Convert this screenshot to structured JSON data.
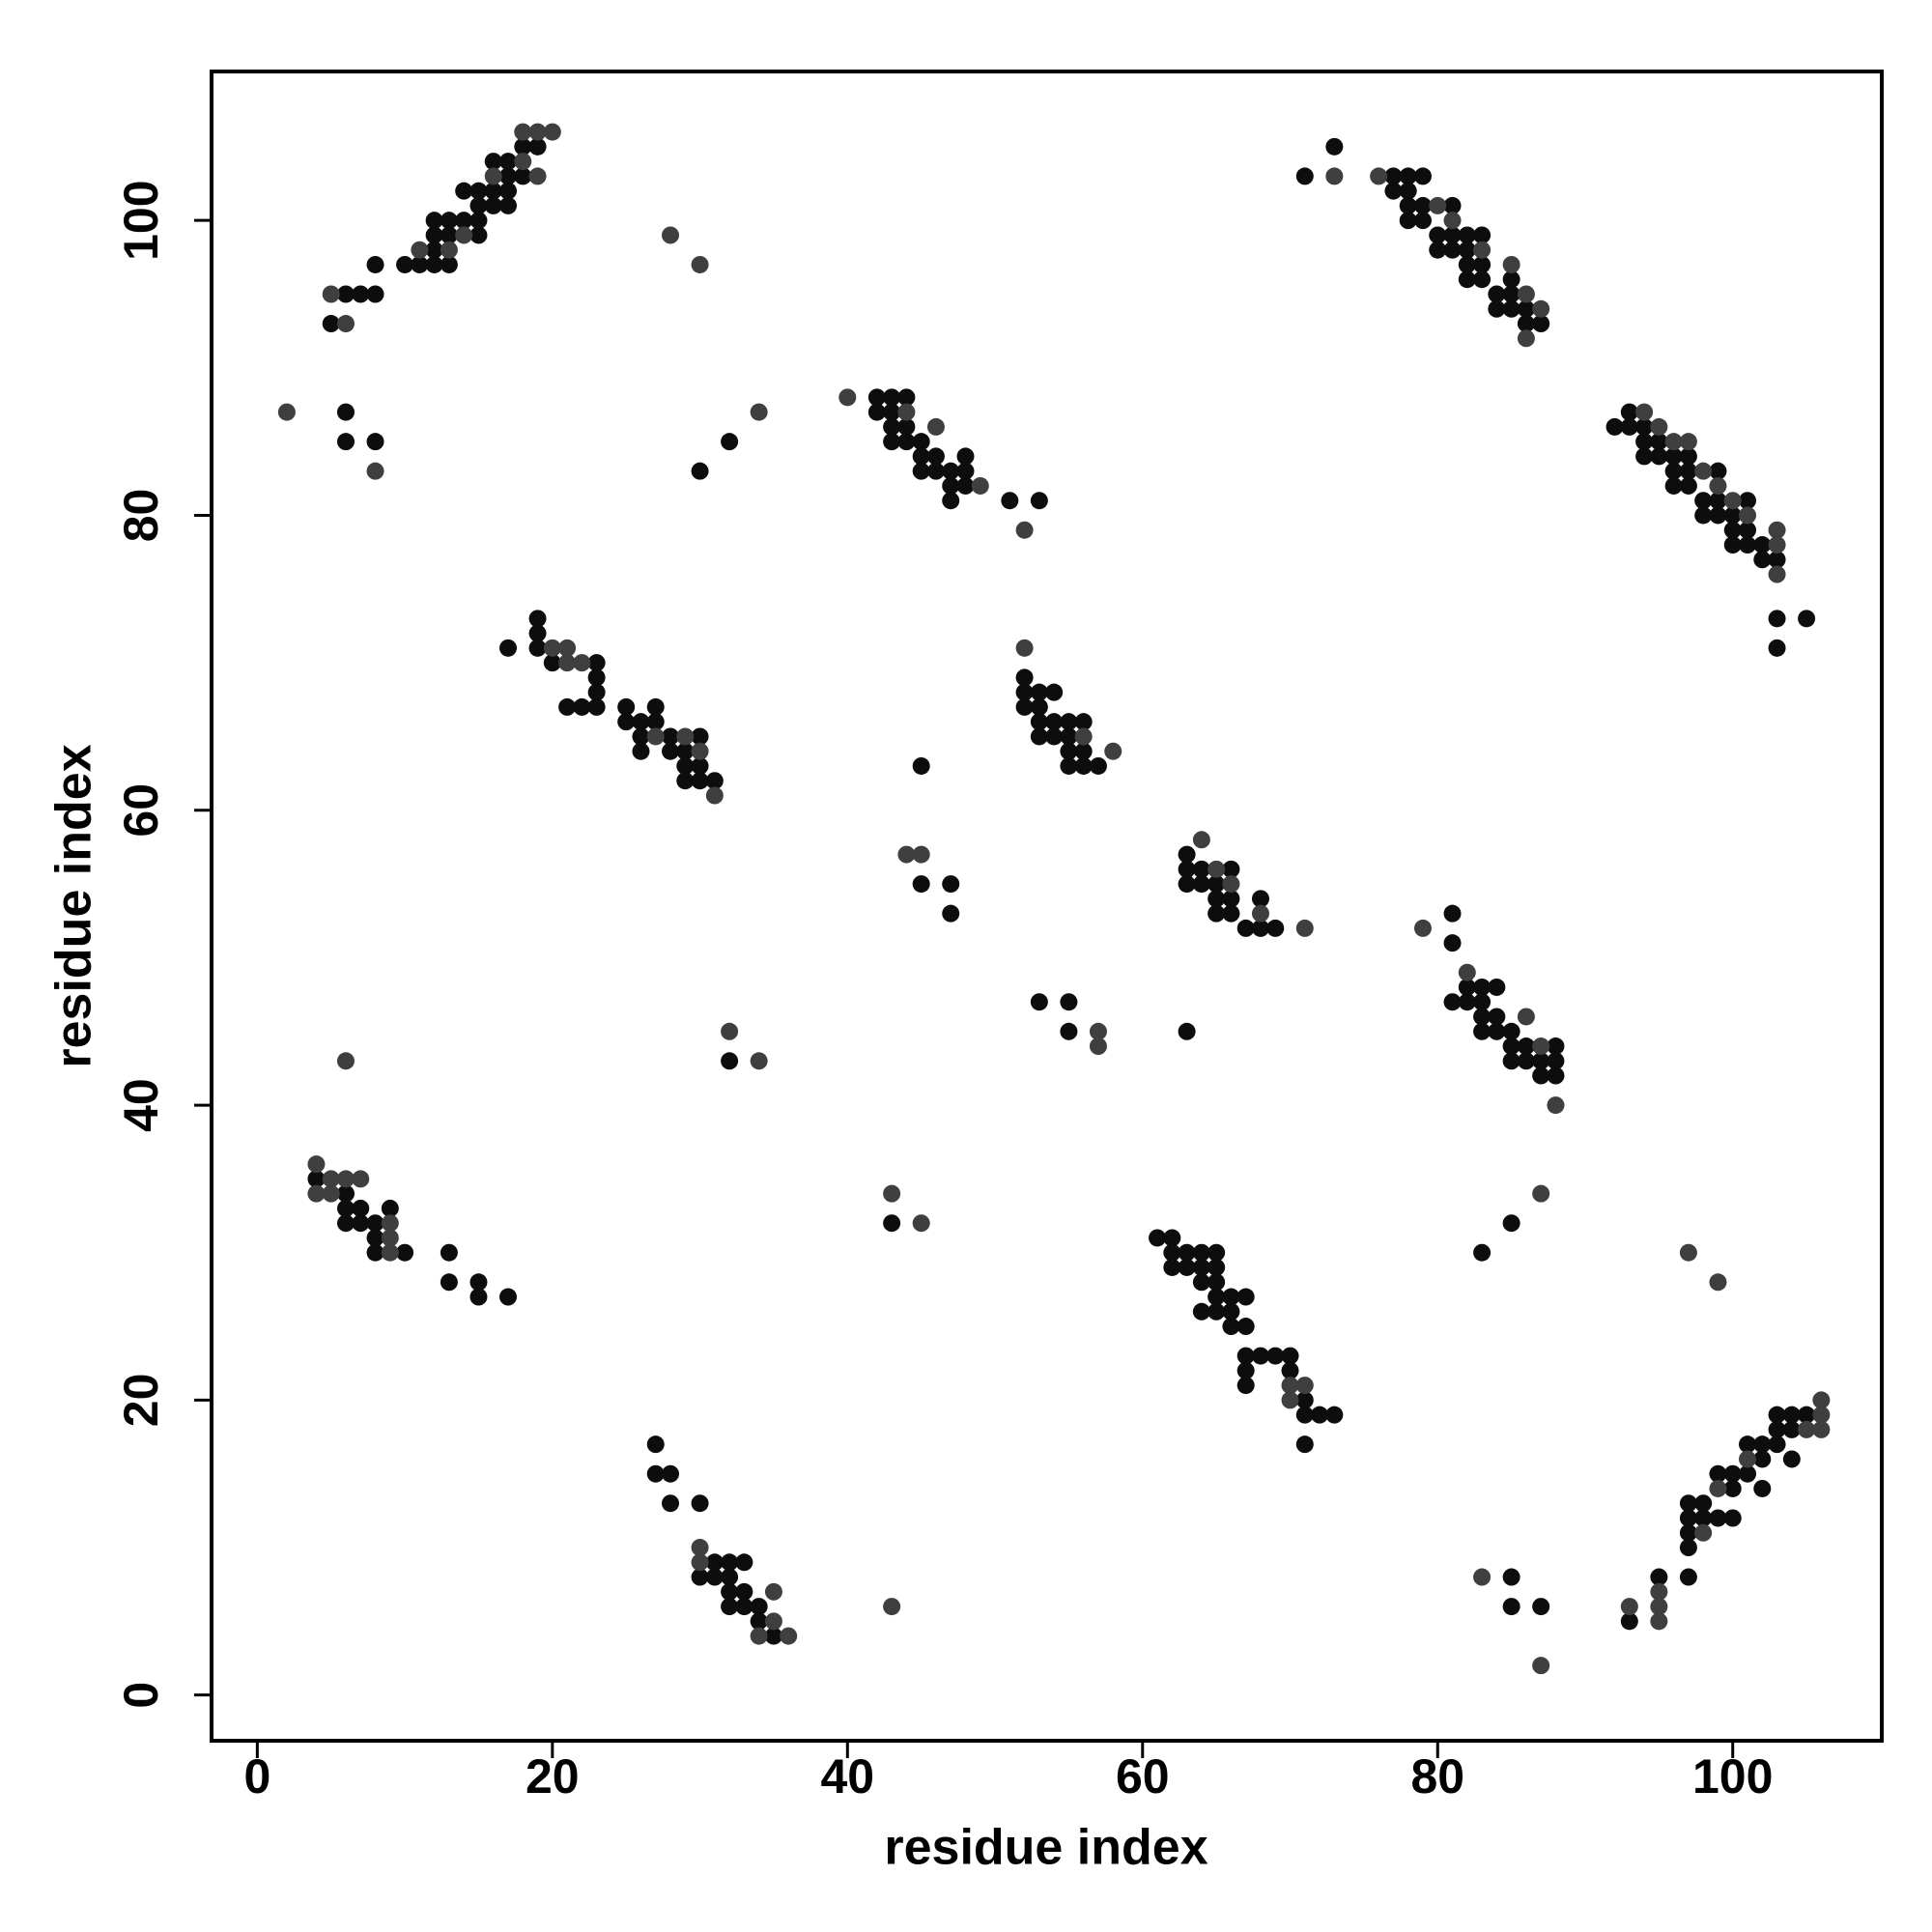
{
  "chart_data": {
    "type": "scatter",
    "x_label": "residue index",
    "y_label": "residue index",
    "xlim": [
      -3.1,
      110.1
    ],
    "ylim": [
      -3.1,
      110.1
    ],
    "xticks": [
      0,
      20,
      40,
      60,
      80,
      100
    ],
    "yticks": [
      0,
      20,
      40,
      60,
      80,
      100
    ],
    "series": [
      {
        "color": "#0d0d0d",
        "x": [
          5,
          6,
          7,
          8,
          8,
          10,
          11,
          12,
          13,
          12,
          12,
          13,
          15,
          12,
          13,
          14,
          15,
          14,
          15,
          15,
          16,
          17,
          16,
          17,
          17,
          18,
          16,
          17,
          18,
          19,
          6,
          6,
          8,
          32,
          30,
          42,
          43,
          44,
          42,
          43,
          43,
          44,
          43,
          44,
          45,
          45,
          46,
          48,
          45,
          46,
          47,
          48,
          47,
          48,
          47,
          51,
          53,
          71,
          73,
          77,
          78,
          79,
          77,
          78,
          78,
          79,
          81,
          78,
          79,
          80,
          81,
          82,
          83,
          80,
          81,
          82,
          82,
          83,
          82,
          83,
          85,
          84,
          85,
          84,
          85,
          86,
          86,
          87,
          92,
          93,
          93,
          94,
          94,
          95,
          94,
          95,
          96,
          97,
          96,
          97,
          99,
          96,
          97,
          98,
          99,
          101,
          98,
          99,
          100,
          100,
          101,
          100,
          101,
          102,
          102,
          103,
          103,
          105,
          103,
          17,
          19,
          19,
          19,
          20,
          23,
          23,
          23,
          21,
          22,
          23,
          25,
          27,
          25,
          26,
          27,
          26,
          28,
          30,
          26,
          28,
          29,
          29,
          30,
          29,
          30,
          31,
          52,
          52,
          53,
          54,
          52,
          53,
          53,
          54,
          55,
          56,
          53,
          54,
          55,
          55,
          56,
          55,
          56,
          57,
          45,
          45,
          47,
          47,
          63,
          63,
          64,
          66,
          63,
          64,
          65,
          65,
          66,
          68,
          65,
          66,
          67,
          68,
          69,
          81,
          81,
          81,
          82,
          82,
          83,
          84,
          83,
          83,
          84,
          83,
          84,
          85,
          85,
          86,
          88,
          85,
          86,
          87,
          88,
          87,
          88,
          53,
          55,
          55,
          63,
          32,
          4,
          6,
          6,
          7,
          9,
          6,
          7,
          8,
          8,
          8,
          10,
          13,
          13,
          15,
          15,
          17,
          43,
          83,
          85,
          61,
          62,
          62,
          63,
          64,
          65,
          62,
          63,
          64,
          65,
          64,
          65,
          65,
          66,
          67,
          64,
          65,
          66,
          66,
          67,
          67,
          68,
          69,
          70,
          67,
          67,
          70,
          71,
          71,
          72,
          73,
          71,
          27,
          27,
          28,
          28,
          30,
          31,
          32,
          33,
          30,
          31,
          32,
          32,
          33,
          32,
          33,
          34,
          34,
          35,
          93,
          95,
          97,
          97,
          97,
          97,
          97,
          98,
          98,
          99,
          99,
          100,
          100,
          100,
          101,
          101,
          102,
          102,
          102,
          103,
          103,
          103,
          104,
          104,
          104,
          105,
          85,
          85,
          87
        ],
        "y": [
          93,
          95,
          95,
          95,
          97,
          97,
          97,
          97,
          97,
          98,
          99,
          99,
          99,
          100,
          100,
          100,
          100,
          102,
          102,
          101,
          101,
          101,
          102,
          102,
          103,
          103,
          104,
          104,
          105,
          105,
          87,
          85,
          85,
          85,
          83,
          88,
          88,
          88,
          87,
          87,
          86,
          86,
          85,
          85,
          85,
          84,
          84,
          84,
          83,
          83,
          83,
          83,
          82,
          82,
          81,
          81,
          81,
          103,
          105,
          103,
          103,
          103,
          102,
          102,
          101,
          101,
          101,
          100,
          100,
          99,
          99,
          99,
          99,
          98,
          98,
          98,
          97,
          97,
          96,
          96,
          96,
          95,
          95,
          94,
          94,
          94,
          93,
          93,
          86,
          87,
          86,
          86,
          85,
          85,
          84,
          84,
          84,
          84,
          83,
          83,
          83,
          82,
          82,
          81,
          81,
          81,
          80,
          80,
          80,
          79,
          79,
          78,
          78,
          78,
          77,
          77,
          73,
          73,
          71,
          71,
          73,
          72,
          71,
          70,
          70,
          69,
          68,
          67,
          67,
          67,
          67,
          67,
          66,
          66,
          66,
          65,
          65,
          65,
          64,
          64,
          64,
          63,
          63,
          62,
          62,
          62,
          69,
          68,
          68,
          68,
          67,
          67,
          66,
          66,
          66,
          66,
          65,
          65,
          65,
          64,
          64,
          63,
          63,
          63,
          63,
          55,
          55,
          53,
          57,
          56,
          56,
          56,
          55,
          55,
          55,
          54,
          54,
          54,
          53,
          53,
          52,
          52,
          52,
          53,
          51,
          47,
          47,
          48,
          48,
          48,
          47,
          46,
          46,
          45,
          45,
          45,
          44,
          44,
          44,
          43,
          43,
          43,
          43,
          42,
          42,
          47,
          47,
          45,
          45,
          43,
          35,
          34,
          33,
          33,
          33,
          32,
          32,
          32,
          31,
          30,
          30,
          30,
          28,
          28,
          27,
          27,
          32,
          30,
          32,
          31,
          31,
          30,
          30,
          30,
          30,
          29,
          29,
          29,
          29,
          28,
          28,
          27,
          27,
          27,
          26,
          26,
          26,
          25,
          25,
          23,
          23,
          23,
          23,
          22,
          21,
          22,
          20,
          19,
          19,
          19,
          17,
          17,
          15,
          15,
          13,
          13,
          9,
          9,
          9,
          8,
          8,
          8,
          7,
          7,
          6,
          6,
          6,
          5,
          4,
          5,
          8,
          8,
          10,
          11,
          12,
          13,
          13,
          12,
          12,
          15,
          15,
          12,
          14,
          15,
          17,
          17,
          16,
          14,
          17,
          19,
          18,
          19,
          18,
          16,
          19,
          8,
          6,
          6
        ]
      },
      {
        "color": "#3f3f3f",
        "x": [
          6,
          5,
          11,
          13,
          14,
          16,
          19,
          18,
          18,
          19,
          20,
          2,
          8,
          28,
          30,
          34,
          40,
          44,
          46,
          49,
          52,
          73,
          76,
          80,
          81,
          83,
          85,
          86,
          87,
          86,
          94,
          95,
          96,
          97,
          98,
          99,
          100,
          101,
          103,
          103,
          103,
          20,
          21,
          21,
          22,
          27,
          29,
          30,
          31,
          52,
          56,
          58,
          44,
          45,
          64,
          65,
          66,
          68,
          71,
          79,
          82,
          86,
          87,
          88,
          57,
          57,
          32,
          34,
          6,
          4,
          5,
          6,
          7,
          4,
          5,
          9,
          9,
          9,
          43,
          45,
          87,
          97,
          99,
          70,
          71,
          70,
          30,
          30,
          35,
          35,
          34,
          36,
          43,
          93,
          95,
          95,
          95,
          98,
          99,
          101,
          105,
          106,
          106,
          106,
          83,
          87
        ],
        "y": [
          93,
          95,
          98,
          98,
          99,
          103,
          103,
          104,
          106,
          106,
          106,
          87,
          83,
          99,
          97,
          87,
          88,
          87,
          86,
          82,
          79,
          103,
          103,
          101,
          100,
          98,
          97,
          95,
          94,
          92,
          87,
          86,
          85,
          85,
          83,
          82,
          81,
          80,
          79,
          78,
          76,
          71,
          71,
          70,
          70,
          65,
          65,
          64,
          61,
          71,
          65,
          64,
          57,
          57,
          58,
          56,
          55,
          53,
          52,
          52,
          49,
          46,
          44,
          40,
          45,
          44,
          45,
          43,
          43,
          36,
          35,
          35,
          35,
          34,
          34,
          32,
          31,
          30,
          34,
          32,
          34,
          30,
          28,
          21,
          21,
          20,
          10,
          9,
          7,
          5,
          4,
          4,
          6,
          6,
          7,
          6,
          5,
          11,
          14,
          16,
          18,
          20,
          19,
          18,
          8,
          2
        ]
      }
    ]
  }
}
